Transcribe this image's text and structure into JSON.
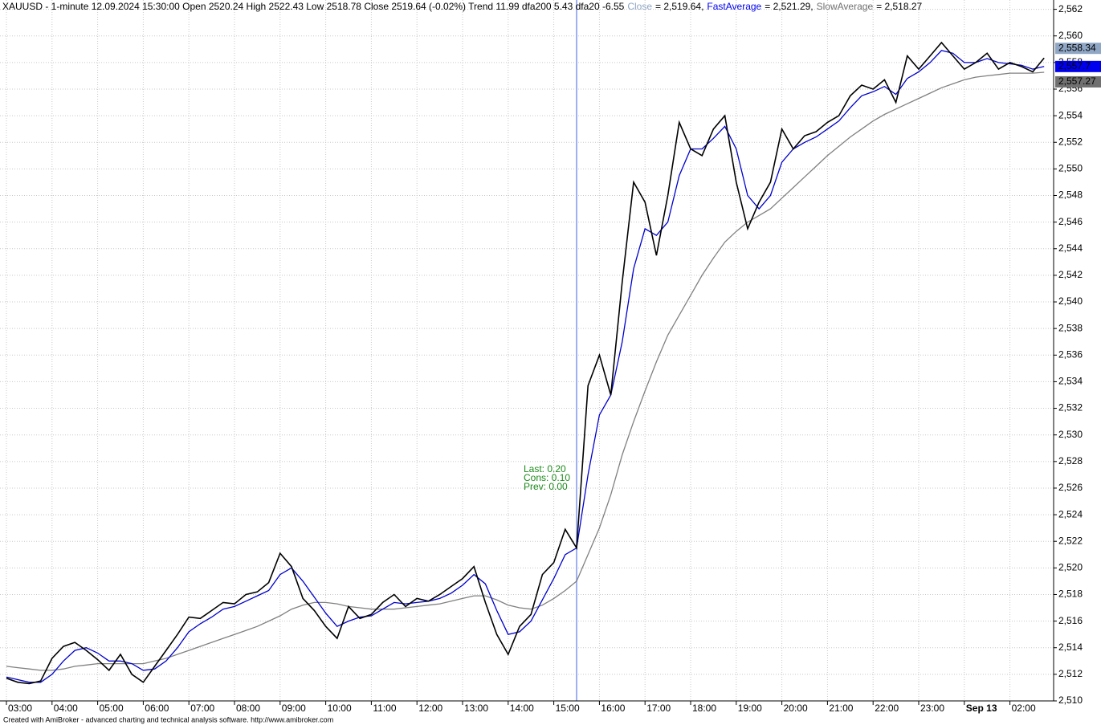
{
  "chart_data": {
    "type": "line",
    "title": "XAUUSD - 1-minute 12.09.2024 15:30:00 Open 2520.24 High 2522.43 Low 2518.78 Close 2519.64 (-0.02%) Trend 11.99 dfa200 5.43 dfa20 -6.55",
    "annotations": [
      "Last: 0.20",
      "Cons: 0.10",
      "Prev: 0.00"
    ],
    "footer": "Created with AmiBroker - advanced charting and technical analysis software. http://www.amibroker.com",
    "cursor_index": 50,
    "grid": true,
    "categories": [
      "03:00",
      null,
      null,
      null,
      "04:00",
      null,
      null,
      null,
      "05:00",
      null,
      null,
      null,
      "06:00",
      null,
      null,
      null,
      "07:00",
      null,
      null,
      null,
      "08:00",
      null,
      null,
      null,
      "09:00",
      null,
      null,
      null,
      "10:00",
      null,
      null,
      null,
      "11:00",
      null,
      null,
      null,
      "12:00",
      null,
      null,
      null,
      "13:00",
      null,
      null,
      null,
      "14:00",
      null,
      null,
      null,
      "15:00",
      null,
      null,
      null,
      "16:00",
      null,
      null,
      null,
      "17:00",
      null,
      null,
      null,
      "18:00",
      null,
      null,
      null,
      "19:00",
      null,
      null,
      null,
      "20:00",
      null,
      null,
      null,
      "21:00",
      null,
      null,
      null,
      "22:00",
      null,
      null,
      null,
      "23:00",
      null,
      null,
      null,
      "Sep 13",
      null,
      null,
      null,
      "02:00",
      null,
      null,
      null
    ],
    "series": [
      {
        "name": "Close",
        "legend": "= 2,519.64,",
        "color": "#000000",
        "label_color": "#8fa6c4",
        "value_labels": {
          "91": "2,558.34"
        },
        "values": [
          2511.7,
          2511.4,
          2511.3,
          2511.5,
          2513.2,
          2514.1,
          2514.4,
          2513.8,
          2513.1,
          2512.3,
          2513.5,
          2512.0,
          2511.4,
          2512.6,
          2513.8,
          2515.0,
          2516.3,
          2516.2,
          2516.8,
          2517.4,
          2517.3,
          2518.0,
          2518.2,
          2518.9,
          2521.1,
          2520.1,
          2517.7,
          2516.8,
          2515.6,
          2514.7,
          2517.1,
          2516.2,
          2516.5,
          2517.4,
          2518.0,
          2517.1,
          2517.7,
          2517.5,
          2518.0,
          2518.6,
          2519.2,
          2520.1,
          2517.4,
          2515.0,
          2513.5,
          2515.6,
          2516.5,
          2519.5,
          2520.4,
          2522.9,
          2521.5,
          2533.7,
          2536.0,
          2533.0,
          2541.5,
          2549.0,
          2547.5,
          2543.5,
          2548.0,
          2553.5,
          2551.5,
          2551.0,
          2553.0,
          2554.0,
          2549.0,
          2545.5,
          2547.5,
          2549.0,
          2553.0,
          2551.5,
          2552.5,
          2552.8,
          2553.5,
          2554.0,
          2555.5,
          2556.3,
          2556.0,
          2556.7,
          2555.0,
          2558.5,
          2557.5,
          2558.5,
          2559.5,
          2558.5,
          2557.5,
          2558.0,
          2558.7,
          2557.5,
          2558.0,
          2557.7,
          2557.3,
          2558.34
        ]
      },
      {
        "name": "FastAverage",
        "legend": "= 2,521.29,",
        "color": "#0000cc",
        "label_color": "#0000ee",
        "value_labels": {
          "91": "2,557.7"
        },
        "values": [
          2511.8,
          2511.6,
          2511.4,
          2511.4,
          2512.0,
          2513.0,
          2513.8,
          2514.0,
          2513.6,
          2513.0,
          2513.0,
          2512.8,
          2512.3,
          2512.4,
          2513.0,
          2514.0,
          2515.2,
          2515.8,
          2516.3,
          2516.9,
          2517.1,
          2517.5,
          2517.9,
          2518.3,
          2519.5,
          2520.0,
          2519.0,
          2517.8,
          2516.6,
          2515.6,
          2516.0,
          2516.3,
          2516.4,
          2516.9,
          2517.4,
          2517.3,
          2517.4,
          2517.5,
          2517.7,
          2518.1,
          2518.7,
          2519.5,
          2518.8,
          2516.8,
          2515.0,
          2515.2,
          2516.0,
          2517.6,
          2519.2,
          2521.0,
          2521.5,
          2527.0,
          2531.5,
          2533.0,
          2537.0,
          2542.5,
          2545.5,
          2545.0,
          2546.0,
          2549.5,
          2551.5,
          2551.5,
          2552.3,
          2553.2,
          2551.5,
          2548.0,
          2547.0,
          2548.0,
          2550.5,
          2551.5,
          2552.0,
          2552.4,
          2553.0,
          2553.6,
          2554.6,
          2555.5,
          2555.8,
          2556.2,
          2555.6,
          2556.8,
          2557.3,
          2558.0,
          2558.9,
          2558.7,
          2558.0,
          2558.0,
          2558.3,
          2558.0,
          2557.9,
          2557.8,
          2557.5,
          2557.7
        ]
      },
      {
        "name": "SlowAverage",
        "legend": "= 2,518.27",
        "color": "#808080",
        "label_color": "#707070",
        "value_labels": {
          "91": "2,557.27"
        },
        "values": [
          2512.6,
          2512.5,
          2512.4,
          2512.3,
          2512.3,
          2512.4,
          2512.6,
          2512.7,
          2512.8,
          2512.8,
          2512.8,
          2512.8,
          2512.8,
          2513.0,
          2513.2,
          2513.5,
          2513.8,
          2514.1,
          2514.4,
          2514.7,
          2515.0,
          2515.3,
          2515.6,
          2516.0,
          2516.4,
          2516.9,
          2517.2,
          2517.4,
          2517.4,
          2517.3,
          2517.1,
          2517.0,
          2516.9,
          2516.9,
          2516.9,
          2517.0,
          2517.1,
          2517.2,
          2517.3,
          2517.5,
          2517.7,
          2517.9,
          2517.9,
          2517.6,
          2517.2,
          2517.0,
          2516.9,
          2517.2,
          2517.7,
          2518.3,
          2519.0,
          2521.0,
          2523.0,
          2525.5,
          2528.5,
          2531.0,
          2533.3,
          2535.5,
          2537.5,
          2539.0,
          2540.5,
          2542.0,
          2543.3,
          2544.5,
          2545.3,
          2546.0,
          2546.5,
          2547.0,
          2547.8,
          2548.6,
          2549.4,
          2550.2,
          2551.0,
          2551.7,
          2552.4,
          2553.0,
          2553.6,
          2554.1,
          2554.5,
          2554.9,
          2555.3,
          2555.7,
          2556.1,
          2556.4,
          2556.7,
          2556.9,
          2557.0,
          2557.1,
          2557.2,
          2557.2,
          2557.2,
          2557.27
        ]
      }
    ],
    "ylim": [
      2510,
      2562.7
    ],
    "yticks": [
      {
        "value": 2510,
        "label": "2,510"
      },
      {
        "value": 2512,
        "label": "2,512"
      },
      {
        "value": 2514,
        "label": "2,514"
      },
      {
        "value": 2516,
        "label": "2,516"
      },
      {
        "value": 2518,
        "label": "2,518"
      },
      {
        "value": 2520,
        "label": "2,520"
      },
      {
        "value": 2522,
        "label": "2,522"
      },
      {
        "value": 2524,
        "label": "2,524"
      },
      {
        "value": 2526,
        "label": "2,526"
      },
      {
        "value": 2528,
        "label": "2,528"
      },
      {
        "value": 2530,
        "label": "2,530"
      },
      {
        "value": 2532,
        "label": "2,532"
      },
      {
        "value": 2534,
        "label": "2,534"
      },
      {
        "value": 2536,
        "label": "2,536"
      },
      {
        "value": 2538,
        "label": "2,538"
      },
      {
        "value": 2540,
        "label": "2,540"
      },
      {
        "value": 2542,
        "label": "2,542"
      },
      {
        "value": 2544,
        "label": "2,544"
      },
      {
        "value": 2546,
        "label": "2,546"
      },
      {
        "value": 2548,
        "label": "2,548"
      },
      {
        "value": 2550,
        "label": "2,550"
      },
      {
        "value": 2552,
        "label": "2,552"
      },
      {
        "value": 2554,
        "label": "2,554"
      },
      {
        "value": 2556,
        "label": "2,556"
      },
      {
        "value": 2558,
        "label": "2,558"
      },
      {
        "value": 2560,
        "label": "2,560"
      },
      {
        "value": 2562,
        "label": "2,562"
      }
    ]
  }
}
